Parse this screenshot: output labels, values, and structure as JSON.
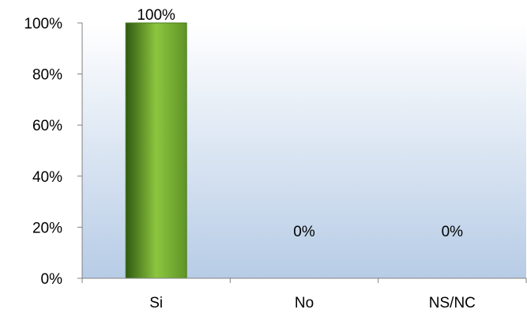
{
  "chart_data": {
    "type": "bar",
    "categories": [
      "Si",
      "No",
      "NS/NC"
    ],
    "values": [
      100,
      0,
      0
    ],
    "data_labels": [
      "100%",
      "0%",
      "0%"
    ],
    "y_ticks": [
      "0%",
      "20%",
      "40%",
      "60%",
      "80%",
      "100%"
    ],
    "ylim": [
      0,
      100
    ],
    "grid": false,
    "legend": "none",
    "colors": {
      "bar_dark": "#2f5a10",
      "bar_mid": "#8cc63f",
      "bar_light": "#5f9426",
      "plot_top": "#ffffff",
      "plot_bottom": "#b7cce6",
      "axis": "#808080"
    }
  }
}
